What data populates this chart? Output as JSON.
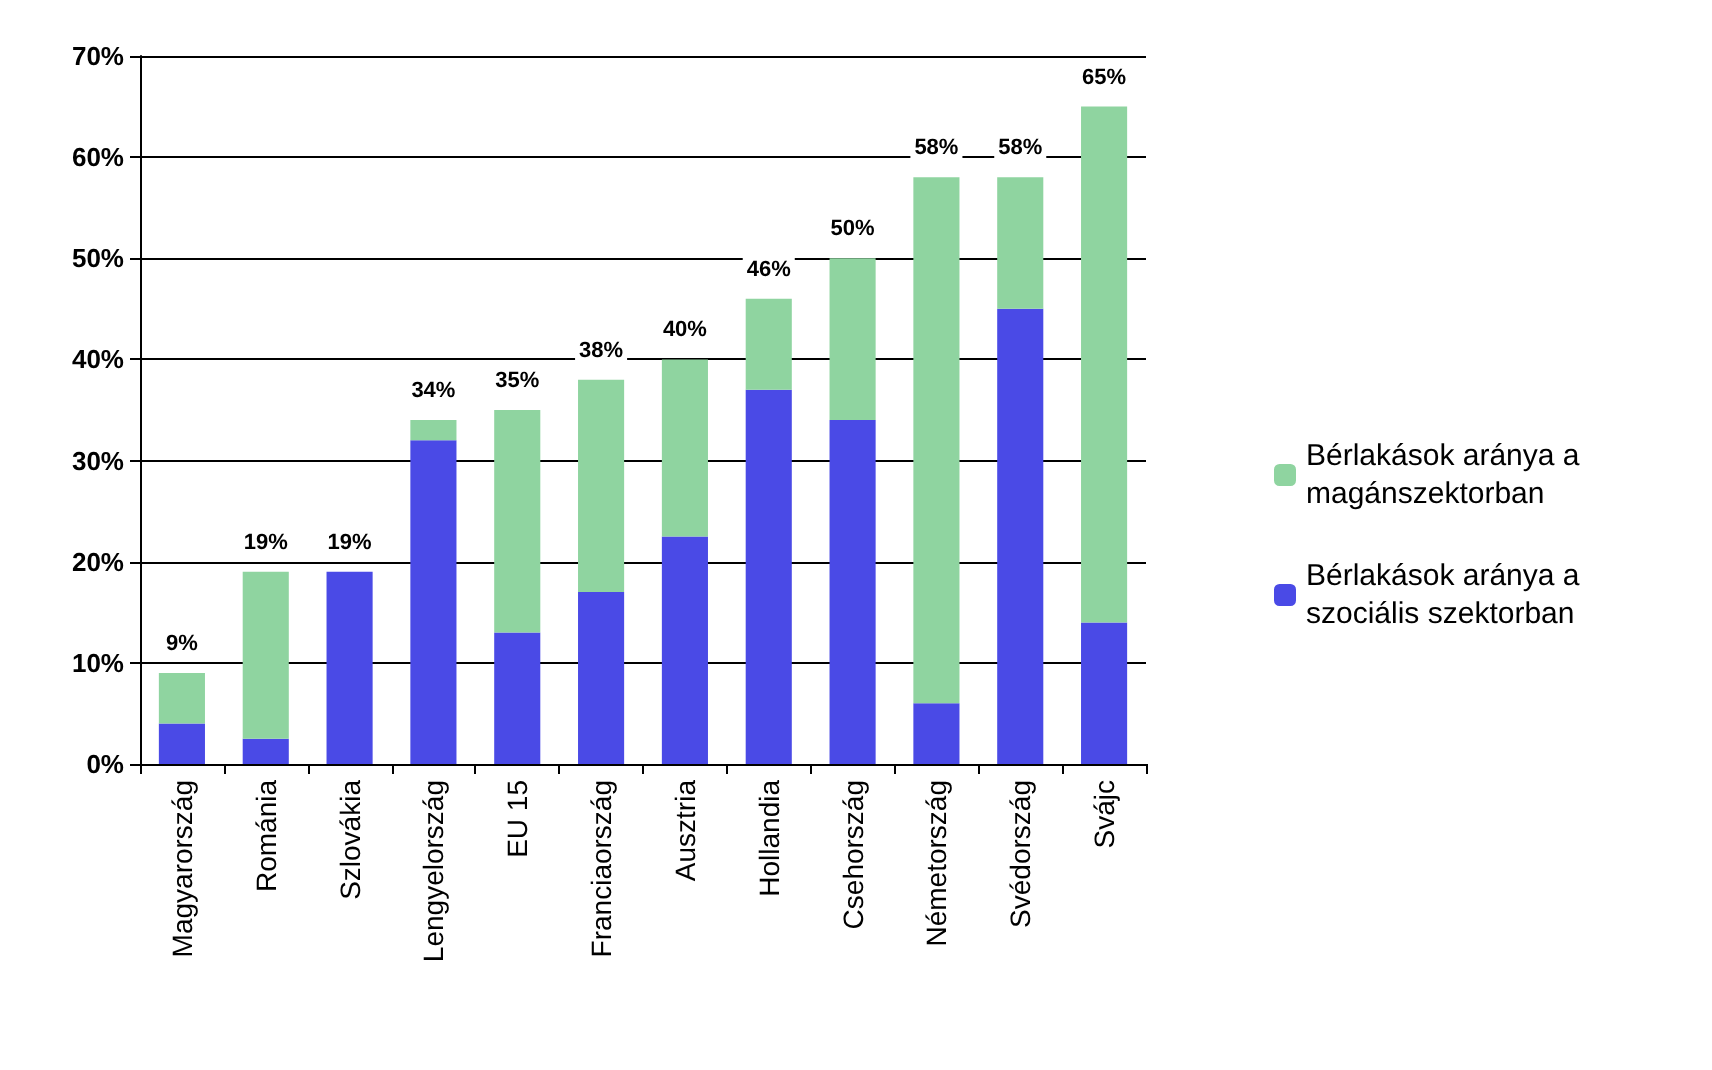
{
  "chart_data": {
    "type": "bar",
    "stacked": true,
    "categories": [
      "Magyarország",
      "Románia",
      "Szlovákia",
      "Lengyelország",
      "EU 15",
      "Franciaország",
      "Ausztria",
      "Hollandia",
      "Csehország",
      "Németország",
      "Svédország",
      "Svájc"
    ],
    "series": [
      {
        "name": "Bérlakások aránya a szociális szektorban",
        "color": "#4a4ae6",
        "values": [
          4,
          2.5,
          19,
          32,
          13,
          17,
          22.5,
          37,
          34,
          6,
          45,
          14
        ]
      },
      {
        "name": "Bérlakások aránya a magánszektorban",
        "color": "#8fd4a0",
        "values": [
          5,
          16.5,
          0,
          2,
          22,
          21,
          17.5,
          9,
          16,
          52,
          13,
          51
        ]
      }
    ],
    "totals": [
      "9%",
      "19%",
      "19%",
      "34%",
      "35%",
      "38%",
      "40%",
      "46%",
      "50%",
      "58%",
      "58%",
      "65%"
    ],
    "ylim": [
      0,
      70
    ],
    "yticks": [
      {
        "value": 0,
        "label": "0%"
      },
      {
        "value": 10,
        "label": "10%"
      },
      {
        "value": 20,
        "label": "20%"
      },
      {
        "value": 30,
        "label": "30%"
      },
      {
        "value": 40,
        "label": "40%"
      },
      {
        "value": 50,
        "label": "50%"
      },
      {
        "value": 60,
        "label": "60%"
      },
      {
        "value": 70,
        "label": "70%"
      }
    ],
    "grid": "y",
    "legend": "right"
  }
}
